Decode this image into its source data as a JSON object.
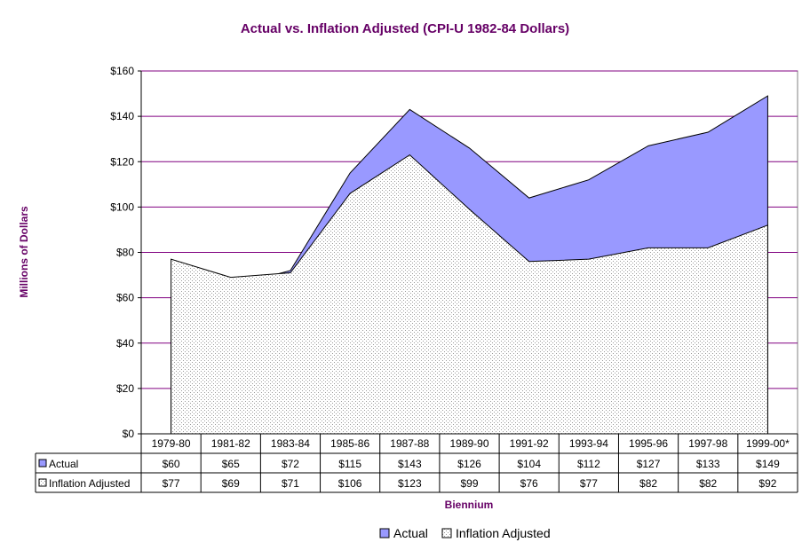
{
  "chart_data": {
    "type": "area",
    "title": "Actual vs. Inflation Adjusted (CPI-U 1982-84 Dollars)",
    "xlabel": "Biennium",
    "ylabel": "Millions of Dollars",
    "ylim": [
      0,
      160
    ],
    "yticks": [
      0,
      20,
      40,
      60,
      80,
      100,
      120,
      140,
      160
    ],
    "ytick_labels": [
      "$0",
      "$20",
      "$40",
      "$60",
      "$80",
      "$100",
      "$120",
      "$140",
      "$160"
    ],
    "categories": [
      "1979-80",
      "1981-82",
      "1983-84",
      "1985-86",
      "1987-88",
      "1989-90",
      "1991-92",
      "1993-94",
      "1995-96",
      "1997-98",
      "1999-00*"
    ],
    "series": [
      {
        "name": "Actual",
        "values": [
          60,
          65,
          72,
          115,
          143,
          126,
          104,
          112,
          127,
          133,
          149
        ],
        "labels": [
          "$60",
          "$65",
          "$72",
          "$115",
          "$143",
          "$126",
          "$104",
          "$112",
          "$127",
          "$133",
          "$149"
        ],
        "color": "#9999ff"
      },
      {
        "name": "Inflation Adjusted",
        "values": [
          77,
          69,
          71,
          106,
          123,
          99,
          76,
          77,
          82,
          82,
          92
        ],
        "labels": [
          "$77",
          "$69",
          "$71",
          "$106",
          "$123",
          "$99",
          "$76",
          "$77",
          "$82",
          "$82",
          "$92"
        ],
        "color": "#ffffff",
        "pattern": "dotted"
      }
    ],
    "grid": true,
    "legend_position": "bottom",
    "data_table": true,
    "colors": {
      "title": "#660066",
      "gridlines": "#800080",
      "axis": "#000000"
    }
  }
}
